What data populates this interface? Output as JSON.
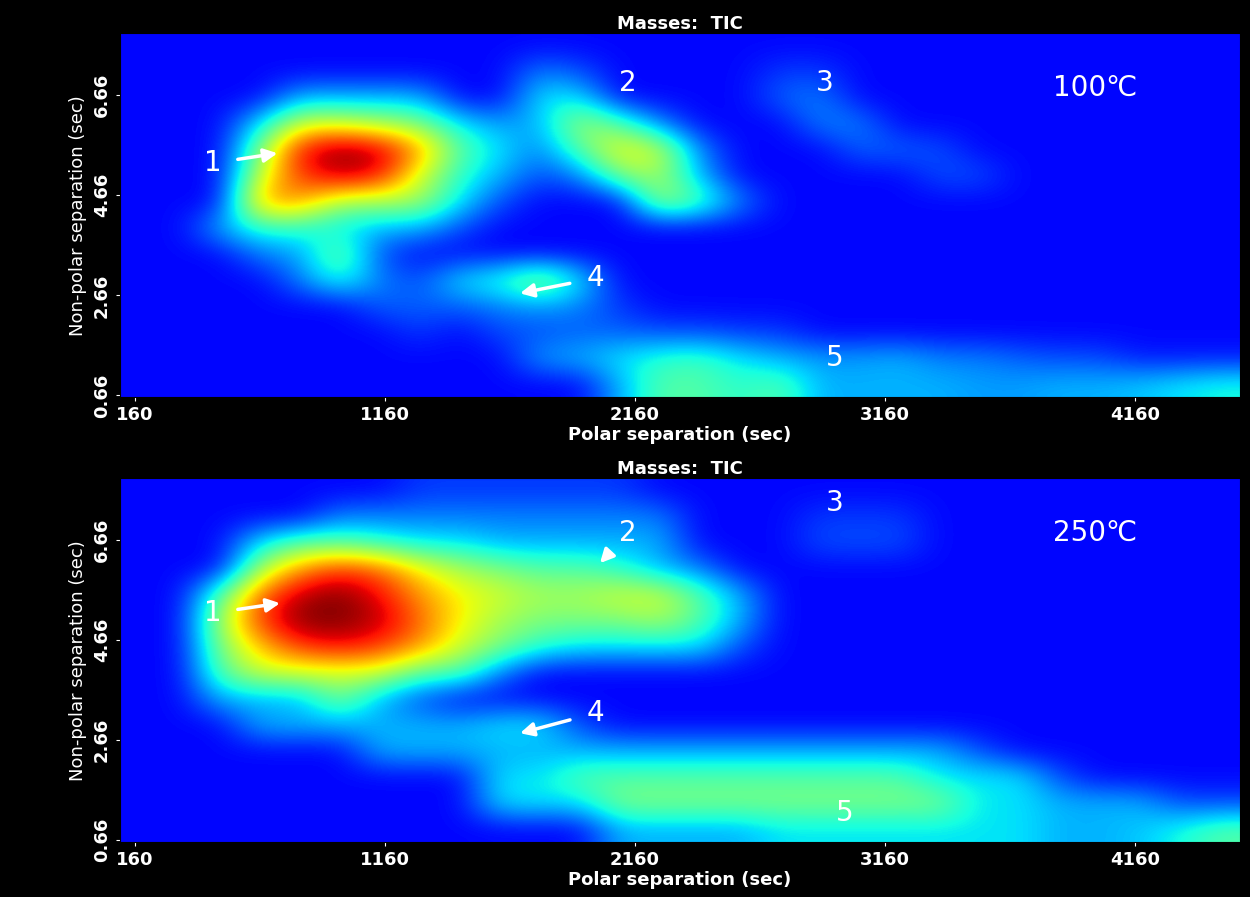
{
  "chart_data": [
    {
      "type": "heatmap",
      "title": "Masses:  TIC",
      "x_label": "Polar separation (sec)",
      "y_label": "Non-polar separation (sec)",
      "xlim": [
        100,
        4580
      ],
      "ylim": [
        0.62,
        7.9
      ],
      "xticks": [
        160,
        1160,
        2160,
        3160,
        4160
      ],
      "yticks": [
        0.66,
        2.66,
        4.66,
        6.66
      ],
      "clim": [
        0,
        1
      ],
      "cells": [
        [
          0.13,
          0.13,
          0.13,
          0.13,
          0.13,
          0.13,
          0.13,
          0.13,
          0.13,
          0.13,
          0.13,
          0.13,
          0.3,
          0.45,
          0.45,
          0.4,
          0.45,
          0.3,
          0.3,
          0.3,
          0.3,
          0.28,
          0.28,
          0.3,
          0.3,
          0.32,
          0.35,
          0.38
        ],
        [
          0.13,
          0.13,
          0.13,
          0.13,
          0.13,
          0.13,
          0.13,
          0.13,
          0.13,
          0.13,
          0.28,
          0.3,
          0.35,
          0.4,
          0.42,
          0.35,
          0.3,
          0.28,
          0.28,
          0.3,
          0.25,
          0.25,
          0.22,
          0.2,
          0.2,
          0.15,
          0.15,
          0.15
        ],
        [
          0.13,
          0.13,
          0.13,
          0.13,
          0.13,
          0.13,
          0.13,
          0.18,
          0.13,
          0.2,
          0.2,
          0.22,
          0.22,
          0.2,
          0.2,
          0.18,
          0.18,
          0.13,
          0.13,
          0.13,
          0.13,
          0.13,
          0.13,
          0.13,
          0.13,
          0.13,
          0.13,
          0.13
        ],
        [
          0.13,
          0.13,
          0.13,
          0.13,
          0.13,
          0.13,
          0.22,
          0.22,
          0.22,
          0.25,
          0.28,
          0.25,
          0.18,
          0.13,
          0.13,
          0.13,
          0.13,
          0.13,
          0.13,
          0.13,
          0.13,
          0.13,
          0.13,
          0.13,
          0.13,
          0.13,
          0.13,
          0.13
        ],
        [
          0.13,
          0.13,
          0.13,
          0.13,
          0.25,
          0.4,
          0.25,
          0.2,
          0.35,
          0.4,
          0.55,
          0.35,
          0.13,
          0.13,
          0.13,
          0.13,
          0.13,
          0.13,
          0.13,
          0.13,
          0.13,
          0.13,
          0.13,
          0.13,
          0.13,
          0.13,
          0.13,
          0.13
        ],
        [
          0.13,
          0.13,
          0.13,
          0.25,
          0.28,
          0.5,
          0.2,
          0.13,
          0.13,
          0.13,
          0.13,
          0.13,
          0.13,
          0.13,
          0.13,
          0.13,
          0.13,
          0.13,
          0.13,
          0.13,
          0.13,
          0.13,
          0.13,
          0.13,
          0.13,
          0.13,
          0.13,
          0.13
        ],
        [
          0.13,
          0.13,
          0.3,
          0.4,
          0.4,
          0.35,
          0.3,
          0.3,
          0.2,
          0.13,
          0.13,
          0.13,
          0.13,
          0.13,
          0.13,
          0.13,
          0.13,
          0.13,
          0.13,
          0.13,
          0.13,
          0.13,
          0.13,
          0.13,
          0.13,
          0.13,
          0.13,
          0.13
        ],
        [
          0.13,
          0.13,
          0.13,
          0.75,
          0.75,
          0.55,
          0.55,
          0.55,
          0.35,
          0.2,
          0.13,
          0.13,
          0.13,
          0.55,
          0.45,
          0.25,
          0.13,
          0.13,
          0.13,
          0.13,
          0.13,
          0.13,
          0.13,
          0.13,
          0.13,
          0.13,
          0.13,
          0.13
        ],
        [
          0.13,
          0.13,
          0.13,
          0.6,
          0.85,
          0.95,
          0.9,
          0.6,
          0.4,
          0.3,
          0.2,
          0.25,
          0.5,
          0.55,
          0.3,
          0.13,
          0.13,
          0.13,
          0.13,
          0.13,
          0.2,
          0.2,
          0.13,
          0.13,
          0.13,
          0.13,
          0.13,
          0.13
        ],
        [
          0.13,
          0.13,
          0.13,
          0.5,
          0.9,
          1.0,
          0.95,
          0.75,
          0.45,
          0.35,
          0.25,
          0.45,
          0.65,
          0.6,
          0.25,
          0.13,
          0.13,
          0.13,
          0.22,
          0.22,
          0.2,
          0.13,
          0.13,
          0.13,
          0.13,
          0.13,
          0.13,
          0.13
        ],
        [
          0.13,
          0.13,
          0.13,
          0.35,
          0.6,
          0.6,
          0.55,
          0.5,
          0.35,
          0.28,
          0.3,
          0.55,
          0.45,
          0.25,
          0.13,
          0.13,
          0.13,
          0.25,
          0.25,
          0.13,
          0.13,
          0.13,
          0.13,
          0.13,
          0.13,
          0.13,
          0.13,
          0.13
        ],
        [
          0.13,
          0.13,
          0.13,
          0.13,
          0.3,
          0.3,
          0.3,
          0.3,
          0.13,
          0.13,
          0.35,
          0.35,
          0.13,
          0.13,
          0.13,
          0.13,
          0.22,
          0.25,
          0.13,
          0.13,
          0.13,
          0.13,
          0.13,
          0.13,
          0.13,
          0.13,
          0.13,
          0.13
        ],
        [
          0.13,
          0.13,
          0.13,
          0.13,
          0.13,
          0.13,
          0.13,
          0.13,
          0.13,
          0.13,
          0.25,
          0.2,
          0.13,
          0.13,
          0.13,
          0.13,
          0.18,
          0.18,
          0.13,
          0.13,
          0.13,
          0.13,
          0.13,
          0.13,
          0.13,
          0.13,
          0.13,
          0.13
        ],
        [
          0.13,
          0.13,
          0.13,
          0.13,
          0.13,
          0.13,
          0.13,
          0.13,
          0.13,
          0.13,
          0.13,
          0.13,
          0.13,
          0.13,
          0.13,
          0.13,
          0.13,
          0.13,
          0.13,
          0.13,
          0.13,
          0.13,
          0.13,
          0.13,
          0.13,
          0.13,
          0.13,
          0.13
        ]
      ],
      "annotations": [
        {
          "text": "1",
          "x": 470,
          "y": 5.3,
          "arrow_to": [
            730,
            5.5
          ]
        },
        {
          "text": "2",
          "x": 2130,
          "y": 6.9
        },
        {
          "text": "3",
          "x": 2920,
          "y": 6.9
        },
        {
          "text": "4",
          "x": 2000,
          "y": 3.0,
          "arrow_to": [
            1700,
            2.7
          ]
        },
        {
          "text": "5",
          "x": 2960,
          "y": 1.4
        },
        {
          "text": "100℃",
          "x": 4000,
          "y": 6.8
        }
      ]
    },
    {
      "type": "heatmap",
      "title": "Masses:  TIC",
      "x_label": "Polar separation (sec)",
      "y_label": "Non-polar separation (sec)",
      "xlim": [
        100,
        4580
      ],
      "ylim": [
        0.62,
        7.9
      ],
      "xticks": [
        160,
        1160,
        2160,
        3160,
        4160
      ],
      "yticks": [
        0.66,
        2.66,
        4.66,
        6.66
      ],
      "clim": [
        0,
        1
      ],
      "cells": [
        [
          0.13,
          0.13,
          0.13,
          0.13,
          0.13,
          0.13,
          0.13,
          0.13,
          0.13,
          0.13,
          0.13,
          0.13,
          0.3,
          0.3,
          0.3,
          0.3,
          0.35,
          0.35,
          0.35,
          0.35,
          0.35,
          0.35,
          0.35,
          0.3,
          0.3,
          0.32,
          0.38,
          0.45
        ],
        [
          0.13,
          0.13,
          0.13,
          0.13,
          0.13,
          0.13,
          0.13,
          0.13,
          0.13,
          0.35,
          0.35,
          0.35,
          0.5,
          0.5,
          0.5,
          0.5,
          0.5,
          0.5,
          0.5,
          0.5,
          0.5,
          0.35,
          0.35,
          0.3,
          0.3,
          0.3,
          0.2,
          0.2
        ],
        [
          0.13,
          0.13,
          0.13,
          0.13,
          0.13,
          0.13,
          0.13,
          0.13,
          0.13,
          0.35,
          0.35,
          0.45,
          0.45,
          0.45,
          0.45,
          0.45,
          0.45,
          0.45,
          0.45,
          0.45,
          0.35,
          0.35,
          0.35,
          0.2,
          0.13,
          0.13,
          0.13,
          0.13
        ],
        [
          0.13,
          0.13,
          0.13,
          0.13,
          0.13,
          0.13,
          0.3,
          0.3,
          0.3,
          0.3,
          0.3,
          0.3,
          0.3,
          0.3,
          0.3,
          0.3,
          0.3,
          0.3,
          0.3,
          0.3,
          0.3,
          0.2,
          0.13,
          0.13,
          0.13,
          0.13,
          0.13,
          0.13
        ],
        [
          0.13,
          0.13,
          0.13,
          0.3,
          0.3,
          0.3,
          0.3,
          0.3,
          0.3,
          0.35,
          0.35,
          0.2,
          0.13,
          0.13,
          0.13,
          0.13,
          0.13,
          0.13,
          0.13,
          0.13,
          0.13,
          0.13,
          0.13,
          0.13,
          0.13,
          0.13,
          0.13,
          0.13
        ],
        [
          0.13,
          0.13,
          0.3,
          0.3,
          0.3,
          0.5,
          0.3,
          0.2,
          0.13,
          0.13,
          0.13,
          0.13,
          0.13,
          0.13,
          0.13,
          0.13,
          0.13,
          0.13,
          0.13,
          0.13,
          0.13,
          0.13,
          0.13,
          0.13,
          0.13,
          0.13,
          0.13,
          0.13
        ],
        [
          0.13,
          0.13,
          0.45,
          0.6,
          0.6,
          0.6,
          0.6,
          0.45,
          0.45,
          0.25,
          0.13,
          0.13,
          0.13,
          0.13,
          0.13,
          0.13,
          0.13,
          0.13,
          0.13,
          0.13,
          0.13,
          0.13,
          0.13,
          0.13,
          0.13,
          0.13,
          0.13,
          0.13
        ],
        [
          0.13,
          0.13,
          0.5,
          0.7,
          0.85,
          0.9,
          0.85,
          0.75,
          0.6,
          0.5,
          0.4,
          0.35,
          0.35,
          0.35,
          0.35,
          0.2,
          0.13,
          0.13,
          0.13,
          0.13,
          0.13,
          0.13,
          0.13,
          0.13,
          0.13,
          0.13,
          0.13,
          0.13
        ],
        [
          0.13,
          0.13,
          0.55,
          0.85,
          1.0,
          1.0,
          0.95,
          0.8,
          0.65,
          0.55,
          0.5,
          0.5,
          0.5,
          0.55,
          0.45,
          0.3,
          0.13,
          0.13,
          0.13,
          0.13,
          0.13,
          0.13,
          0.13,
          0.13,
          0.13,
          0.13,
          0.13,
          0.13
        ],
        [
          0.13,
          0.13,
          0.45,
          0.8,
          0.95,
          1.0,
          0.9,
          0.75,
          0.65,
          0.6,
          0.55,
          0.55,
          0.6,
          0.6,
          0.45,
          0.3,
          0.13,
          0.13,
          0.13,
          0.13,
          0.13,
          0.13,
          0.13,
          0.13,
          0.13,
          0.13,
          0.13,
          0.13
        ],
        [
          0.13,
          0.13,
          0.13,
          0.55,
          0.75,
          0.85,
          0.8,
          0.65,
          0.55,
          0.5,
          0.45,
          0.45,
          0.4,
          0.3,
          0.25,
          0.13,
          0.13,
          0.13,
          0.13,
          0.13,
          0.13,
          0.13,
          0.13,
          0.13,
          0.13,
          0.13,
          0.13,
          0.13
        ],
        [
          0.13,
          0.13,
          0.13,
          0.35,
          0.45,
          0.45,
          0.4,
          0.35,
          0.35,
          0.3,
          0.3,
          0.3,
          0.3,
          0.3,
          0.13,
          0.13,
          0.13,
          0.2,
          0.2,
          0.2,
          0.13,
          0.13,
          0.13,
          0.13,
          0.13,
          0.13,
          0.13,
          0.13
        ],
        [
          0.13,
          0.13,
          0.13,
          0.13,
          0.13,
          0.25,
          0.25,
          0.25,
          0.25,
          0.25,
          0.25,
          0.25,
          0.25,
          0.25,
          0.13,
          0.13,
          0.13,
          0.18,
          0.18,
          0.18,
          0.13,
          0.13,
          0.13,
          0.13,
          0.13,
          0.13,
          0.13,
          0.13
        ],
        [
          0.13,
          0.13,
          0.13,
          0.13,
          0.13,
          0.13,
          0.13,
          0.18,
          0.18,
          0.18,
          0.18,
          0.18,
          0.18,
          0.13,
          0.13,
          0.13,
          0.13,
          0.13,
          0.13,
          0.13,
          0.13,
          0.13,
          0.13,
          0.13,
          0.13,
          0.13,
          0.13,
          0.13
        ]
      ],
      "annotations": [
        {
          "text": "1",
          "x": 470,
          "y": 5.2,
          "arrow_to": [
            740,
            5.4
          ]
        },
        {
          "text": "2",
          "x": 2130,
          "y": 6.8,
          "arrow_to": [
            2020,
            6.2
          ]
        },
        {
          "text": "3",
          "x": 2960,
          "y": 7.4
        },
        {
          "text": "4",
          "x": 2000,
          "y": 3.2,
          "arrow_to": [
            1700,
            2.8
          ]
        },
        {
          "text": "5",
          "x": 3000,
          "y": 1.2
        },
        {
          "text": "250℃",
          "x": 4000,
          "y": 6.8
        }
      ]
    }
  ]
}
